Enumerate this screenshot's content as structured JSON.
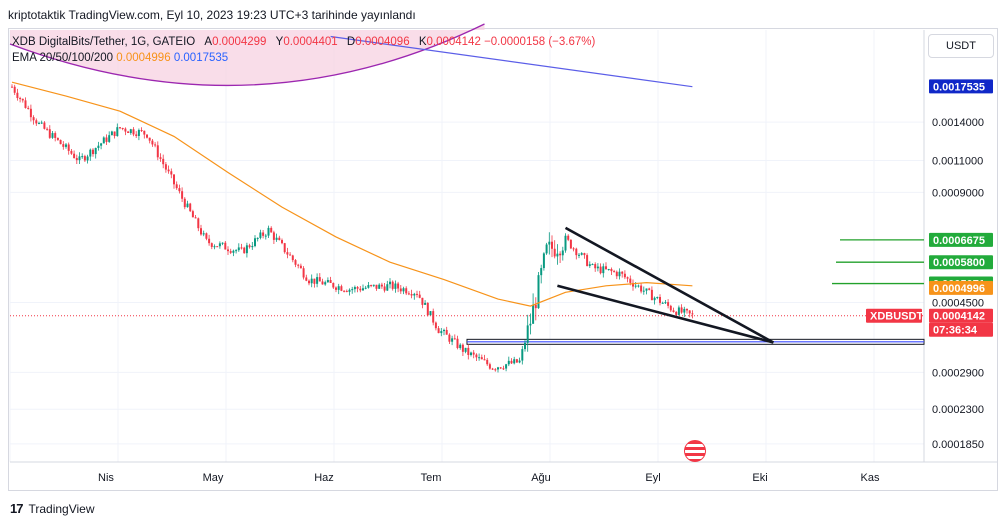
{
  "header": {
    "text": "kriptotaktik TradingView.com, Eyl 10, 2023 19:23 UTC+3 tarihinde yayınlandı"
  },
  "legend": {
    "symbol": "XDB DigitalBits/Tether, 1G, GATEIO",
    "o_label": "A",
    "o_value": "0.0004299",
    "h_label": "Y",
    "h_value": "0.0004401",
    "l_label": "D",
    "l_value": "0.0004096",
    "c_label": "K",
    "c_value": "0.0004142",
    "change": "−0.0000158 (−3.67%)",
    "ema_label": "EMA 20/50/100/200",
    "ema_v1": "0.0004996",
    "ema_v2": "0.0017535"
  },
  "quote_currency": "USDT",
  "footer": {
    "brand": "TradingView"
  },
  "colors": {
    "up": "#089981",
    "down": "#f23645",
    "ema_short": "#f7931a",
    "ema_long": "#5b5ee8",
    "level_line": "#22a12b",
    "label_green": "#22ab3b",
    "label_blue": "#1028c8",
    "label_orange": "#f7931a",
    "label_red": "#f23645"
  },
  "chart_data": {
    "type": "candlestick",
    "y_scale": "log",
    "ylim": [
      0.000165,
      0.0025
    ],
    "y_ticks": [
      "0.0001850",
      "0.0002300",
      "0.0002900",
      "0.0004500",
      "0.0009000",
      "0.0011000",
      "0.0014000"
    ],
    "x_ticks": [
      "Nis",
      "May",
      "Haz",
      "Tem",
      "Ağu",
      "Eyl",
      "Eki",
      "Kas"
    ],
    "price_labels": [
      {
        "text": "0.0017535",
        "kind": "blue"
      },
      {
        "text": "0.0006675",
        "kind": "green"
      },
      {
        "text": "0.0005800",
        "kind": "green"
      },
      {
        "text": "0.0005071",
        "kind": "green"
      },
      {
        "text": "0.0004996",
        "kind": "orange"
      },
      {
        "text": "XDBUSDT",
        "kind": "red-tag"
      },
      {
        "text": "0.0004142",
        "kind": "red"
      },
      {
        "text": "07:36:34",
        "kind": "red"
      }
    ],
    "horizontal_levels": [
      0.0006675,
      0.00058,
      0.0005071
    ],
    "current_price": 0.0004142,
    "support_zone": [
      0.000346,
      0.000357
    ],
    "series": [
      {
        "name": "XDB price",
        "type": "candlestick",
        "anchors": [
          [
            0,
            0.00175
          ],
          [
            10,
            0.00138
          ],
          [
            25,
            0.0011
          ],
          [
            40,
            0.00135
          ],
          [
            50,
            0.0013
          ],
          [
            60,
            0.00095
          ],
          [
            72,
            0.00066
          ],
          [
            85,
            0.00062
          ],
          [
            95,
            0.00071
          ],
          [
            110,
            0.00052
          ],
          [
            125,
            0.00049
          ],
          [
            140,
            0.0005
          ],
          [
            150,
            0.00048
          ],
          [
            158,
            0.00038
          ],
          [
            168,
            0.00033
          ],
          [
            178,
            0.0003
          ],
          [
            188,
            0.00031
          ],
          [
            192,
            0.0004
          ],
          [
            198,
            0.00062
          ],
          [
            205,
            0.00067
          ],
          [
            215,
            0.00056
          ],
          [
            225,
            0.00054
          ],
          [
            235,
            0.00048
          ],
          [
            245,
            0.00043
          ],
          [
            252,
            0.000414
          ]
        ]
      },
      {
        "name": "EMA",
        "type": "line",
        "role": "ema_short",
        "points": [
          [
            0,
            0.0018
          ],
          [
            20,
            0.00165
          ],
          [
            40,
            0.0015
          ],
          [
            60,
            0.00128
          ],
          [
            80,
            0.00102
          ],
          [
            100,
            0.00082
          ],
          [
            120,
            0.00068
          ],
          [
            140,
            0.00058
          ],
          [
            160,
            0.00052
          ],
          [
            180,
            0.00046
          ],
          [
            192,
            0.00044
          ],
          [
            205,
            0.00048
          ],
          [
            220,
            0.0005
          ],
          [
            235,
            0.00051
          ],
          [
            252,
            0.0005
          ]
        ]
      },
      {
        "name": "EMA",
        "type": "line",
        "role": "ema_long",
        "points": [
          [
            118,
            0.0024
          ],
          [
            252,
            0.00175
          ]
        ]
      }
    ],
    "annotations": {
      "wedge_upper": [
        [
          205,
          0.00072
        ],
        [
          282,
          0.00035
        ]
      ],
      "wedge_lower": [
        [
          202,
          0.0005
        ],
        [
          282,
          0.00035
        ]
      ],
      "circle_arc": [
        [
          0,
          0.00215
        ],
        [
          90,
          0.0016
        ],
        [
          175,
          0.00245
        ]
      ]
    }
  }
}
